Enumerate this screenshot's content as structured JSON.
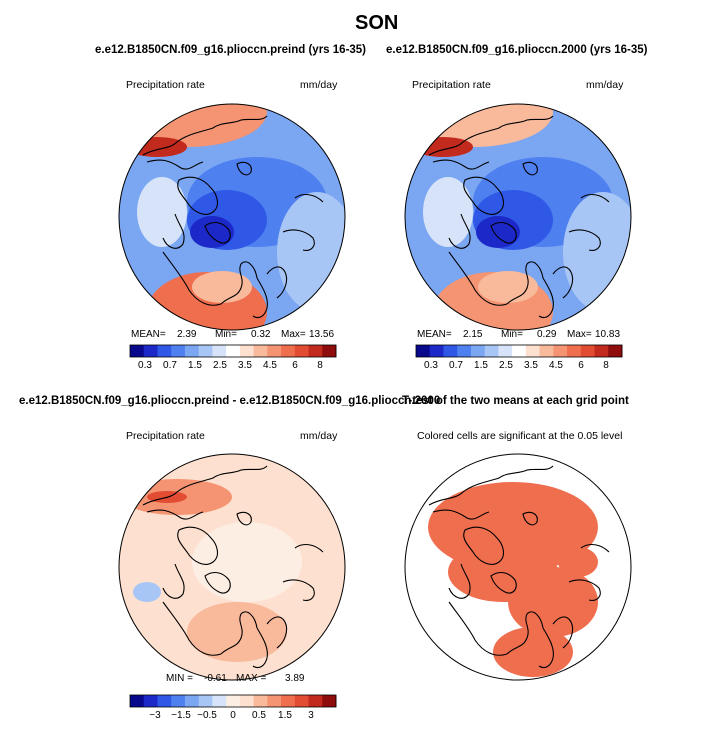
{
  "title": "SON",
  "colors": {
    "abs_scale": [
      "#08088c",
      "#1c28c8",
      "#2f58e6",
      "#4f80f0",
      "#7aa6f2",
      "#a8c6f5",
      "#d6e3f8",
      "#ffffff",
      "#fde0cf",
      "#f9b99b",
      "#f49472",
      "#ee6e4e",
      "#e14c33",
      "#c22a1e",
      "#8e0c0c"
    ],
    "diff_scale": [
      "#08088c",
      "#1c28c8",
      "#2f58e6",
      "#4f80f0",
      "#7aa6f2",
      "#a8c6f5",
      "#d6e3f8",
      "#fdeee4",
      "#fde0cf",
      "#f9b99b",
      "#f49472",
      "#ee6e4e",
      "#e14c33",
      "#c22a1e",
      "#8e0c0c"
    ],
    "signif": "#ee6e4e"
  },
  "panels": {
    "preind": {
      "title": "e.e12.B1850CN.f09_g16.plioccn.preind (yrs 16-35)",
      "variable": "Precipitation rate",
      "units": "mm/day",
      "stats": {
        "mean_label": "MEAN=",
        "mean": "2.39",
        "min_label": "Min=",
        "min": "0.32",
        "max_label": "Max=",
        "max": "13.56"
      },
      "colorbar_ticks": [
        "0.3",
        "0.7",
        "1.5",
        "2.5",
        "3.5",
        "4.5",
        "6",
        "8"
      ]
    },
    "p2000": {
      "title": "e.e12.B1850CN.f09_g16.plioccn.2000 (yrs 16-35)",
      "variable": "Precipitation rate",
      "units": "mm/day",
      "stats": {
        "mean_label": "MEAN=",
        "mean": "2.15",
        "min_label": "Min=",
        "min": "0.29",
        "max_label": "Max=",
        "max": "10.83"
      },
      "colorbar_ticks": [
        "0.3",
        "0.7",
        "1.5",
        "2.5",
        "3.5",
        "4.5",
        "6",
        "8"
      ]
    },
    "diff": {
      "title": "e.e12.B1850CN.f09_g16.plioccn.preind - e.e12.B1850CN.f09_g16.plioccn.2000",
      "variable": "Precipitation rate",
      "units": "mm/day",
      "stats": {
        "min_label": "MIN =",
        "min": "-0.61",
        "max_label": "MAX =",
        "max": "3.89"
      },
      "colorbar_ticks": [
        "−3",
        "−1.5",
        "−0.5",
        "0",
        "0.5",
        "1.5",
        "3"
      ]
    },
    "ttest": {
      "title": "T-test of the two means at each grid point",
      "subtitle": "Colored cells are significant at the 0.05 level"
    }
  },
  "chart_data": [
    {
      "type": "heatmap",
      "projection": "north-polar-stereographic",
      "title": "e.e12.B1850CN.f09_g16.plioccn.preind (yrs 16-35)",
      "field": "Precipitation rate",
      "units": "mm/day",
      "mean": 2.39,
      "min": 0.32,
      "max": 13.56,
      "levels": [
        0.3,
        0.5,
        0.7,
        1,
        1.5,
        2,
        2.5,
        3,
        3.5,
        4,
        4.5,
        5,
        6,
        7,
        8
      ]
    },
    {
      "type": "heatmap",
      "projection": "north-polar-stereographic",
      "title": "e.e12.B1850CN.f09_g16.plioccn.2000 (yrs 16-35)",
      "field": "Precipitation rate",
      "units": "mm/day",
      "mean": 2.15,
      "min": 0.29,
      "max": 10.83,
      "levels": [
        0.3,
        0.5,
        0.7,
        1,
        1.5,
        2,
        2.5,
        3,
        3.5,
        4,
        4.5,
        5,
        6,
        7,
        8
      ]
    },
    {
      "type": "heatmap",
      "projection": "north-polar-stereographic",
      "title": "e.e12.B1850CN.f09_g16.plioccn.preind - e.e12.B1850CN.f09_g16.plioccn.2000",
      "field": "Precipitation rate",
      "units": "mm/day",
      "min": -0.61,
      "max": 3.89,
      "levels": [
        -3,
        -2,
        -1.5,
        -1,
        -0.5,
        -0.25,
        0,
        0.25,
        0.5,
        1,
        1.5,
        2,
        3
      ]
    },
    {
      "type": "heatmap",
      "projection": "north-polar-stereographic",
      "title": "T-test of the two means at each grid point",
      "subtitle": "Colored cells are significant at the 0.05 level",
      "significance_level": 0.05
    }
  ]
}
